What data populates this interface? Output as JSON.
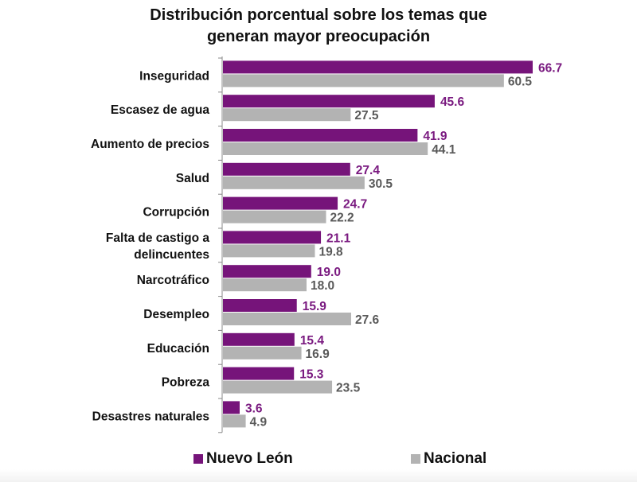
{
  "chart_data": {
    "type": "bar",
    "orientation": "horizontal",
    "title": [
      "Distribución porcentual sobre los temas que",
      "generan mayor preocupación"
    ],
    "categories": [
      "Inseguridad",
      "Escasez de agua",
      "Aumento de precios",
      "Salud",
      "Corrupción",
      "Falta de castigo a delincuentes",
      "Narcotráfico",
      "Desempleo",
      "Educación",
      "Pobreza",
      "Desastres naturales"
    ],
    "series": [
      {
        "name": "Nuevo León",
        "color": "#76147a",
        "label_color": "#7a1a80",
        "values": [
          66.7,
          45.6,
          41.9,
          27.4,
          24.7,
          21.1,
          19.0,
          15.9,
          15.4,
          15.3,
          3.6
        ]
      },
      {
        "name": "Nacional",
        "color": "#b3b3b3",
        "label_color": "#595959",
        "values": [
          60.5,
          27.5,
          44.1,
          30.5,
          22.2,
          19.8,
          18.0,
          27.6,
          16.9,
          23.5,
          4.9
        ]
      }
    ],
    "xlim": [
      0,
      70
    ],
    "grid": false,
    "legend_position": "bottom"
  }
}
